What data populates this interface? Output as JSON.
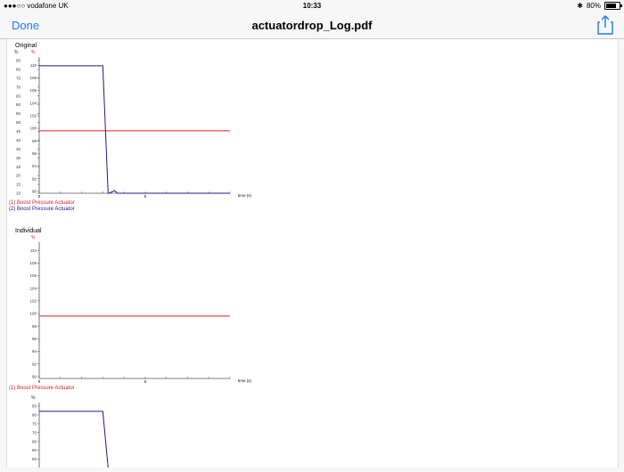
{
  "status": {
    "carrier": "●●●○○ vodafone UK",
    "time": "10:33",
    "battery": "80%",
    "battery_level": 0.8
  },
  "nav": {
    "done_label": "Done",
    "title": "actuatordrop_Log.pdf"
  },
  "charts_text": {
    "original": "Original",
    "individual": "Individual",
    "unit": "%",
    "time_label": "time (s)",
    "legend1": "(1) Boost Pressure Actuator",
    "legend2": "(2) Boost Pressure Actuator"
  },
  "colors": {
    "accent": "#1a7cf5",
    "series1": "#d22020",
    "series2": "#1a1a8c"
  },
  "chart_data": [
    {
      "type": "line",
      "title": "Original",
      "xlabel": "time (s)",
      "xlim": [
        0,
        9
      ],
      "x_ticks": [
        0,
        5
      ],
      "left_axis": {
        "unit": "%",
        "ticks": [
          10,
          15,
          20,
          25,
          30,
          35,
          40,
          45,
          50,
          55,
          60,
          65,
          70,
          75,
          80,
          85
        ],
        "ylim": [
          10,
          87
        ]
      },
      "right_axis": {
        "unit": "%",
        "ticks": [
          90,
          92,
          94,
          96,
          98,
          100,
          102,
          104,
          106,
          108,
          110
        ],
        "ylim": [
          89.7,
          111.3
        ]
      },
      "series": [
        {
          "name": "(1) Boost Pressure Actuator",
          "axis": "right",
          "x": [
            0,
            9
          ],
          "y": [
            99.6,
            99.6
          ]
        },
        {
          "name": "(2) Boost Pressure Actuator",
          "axis": "left",
          "x": [
            0,
            3.0,
            3.25,
            3.3,
            3.55,
            3.7,
            3.9,
            9
          ],
          "y": [
            82,
            82,
            10,
            10,
            11.5,
            10,
            10,
            10
          ]
        }
      ]
    },
    {
      "type": "line",
      "title": "Individual",
      "xlabel": "time (s)",
      "xlim": [
        0,
        9
      ],
      "x_ticks": [
        0,
        5
      ],
      "y_axis": {
        "unit": "%",
        "ticks": [
          90,
          92,
          94,
          96,
          98,
          100,
          102,
          104,
          106,
          108,
          110
        ],
        "ylim": [
          89.7,
          111.3
        ]
      },
      "series": [
        {
          "name": "(1) Boost Pressure Actuator",
          "x": [
            0,
            9
          ],
          "y": [
            99.6,
            99.6
          ]
        }
      ]
    },
    {
      "type": "line",
      "title": "",
      "xlim": [
        0,
        9
      ],
      "y_axis": {
        "unit": "%",
        "ticks": [
          55,
          60,
          65,
          70,
          75,
          80,
          85
        ],
        "ylim": [
          10,
          87
        ]
      },
      "series": [
        {
          "name": "(2) Boost Pressure Actuator",
          "x": [
            0,
            3.0,
            3.25
          ],
          "y": [
            82,
            82,
            10
          ]
        }
      ]
    }
  ]
}
